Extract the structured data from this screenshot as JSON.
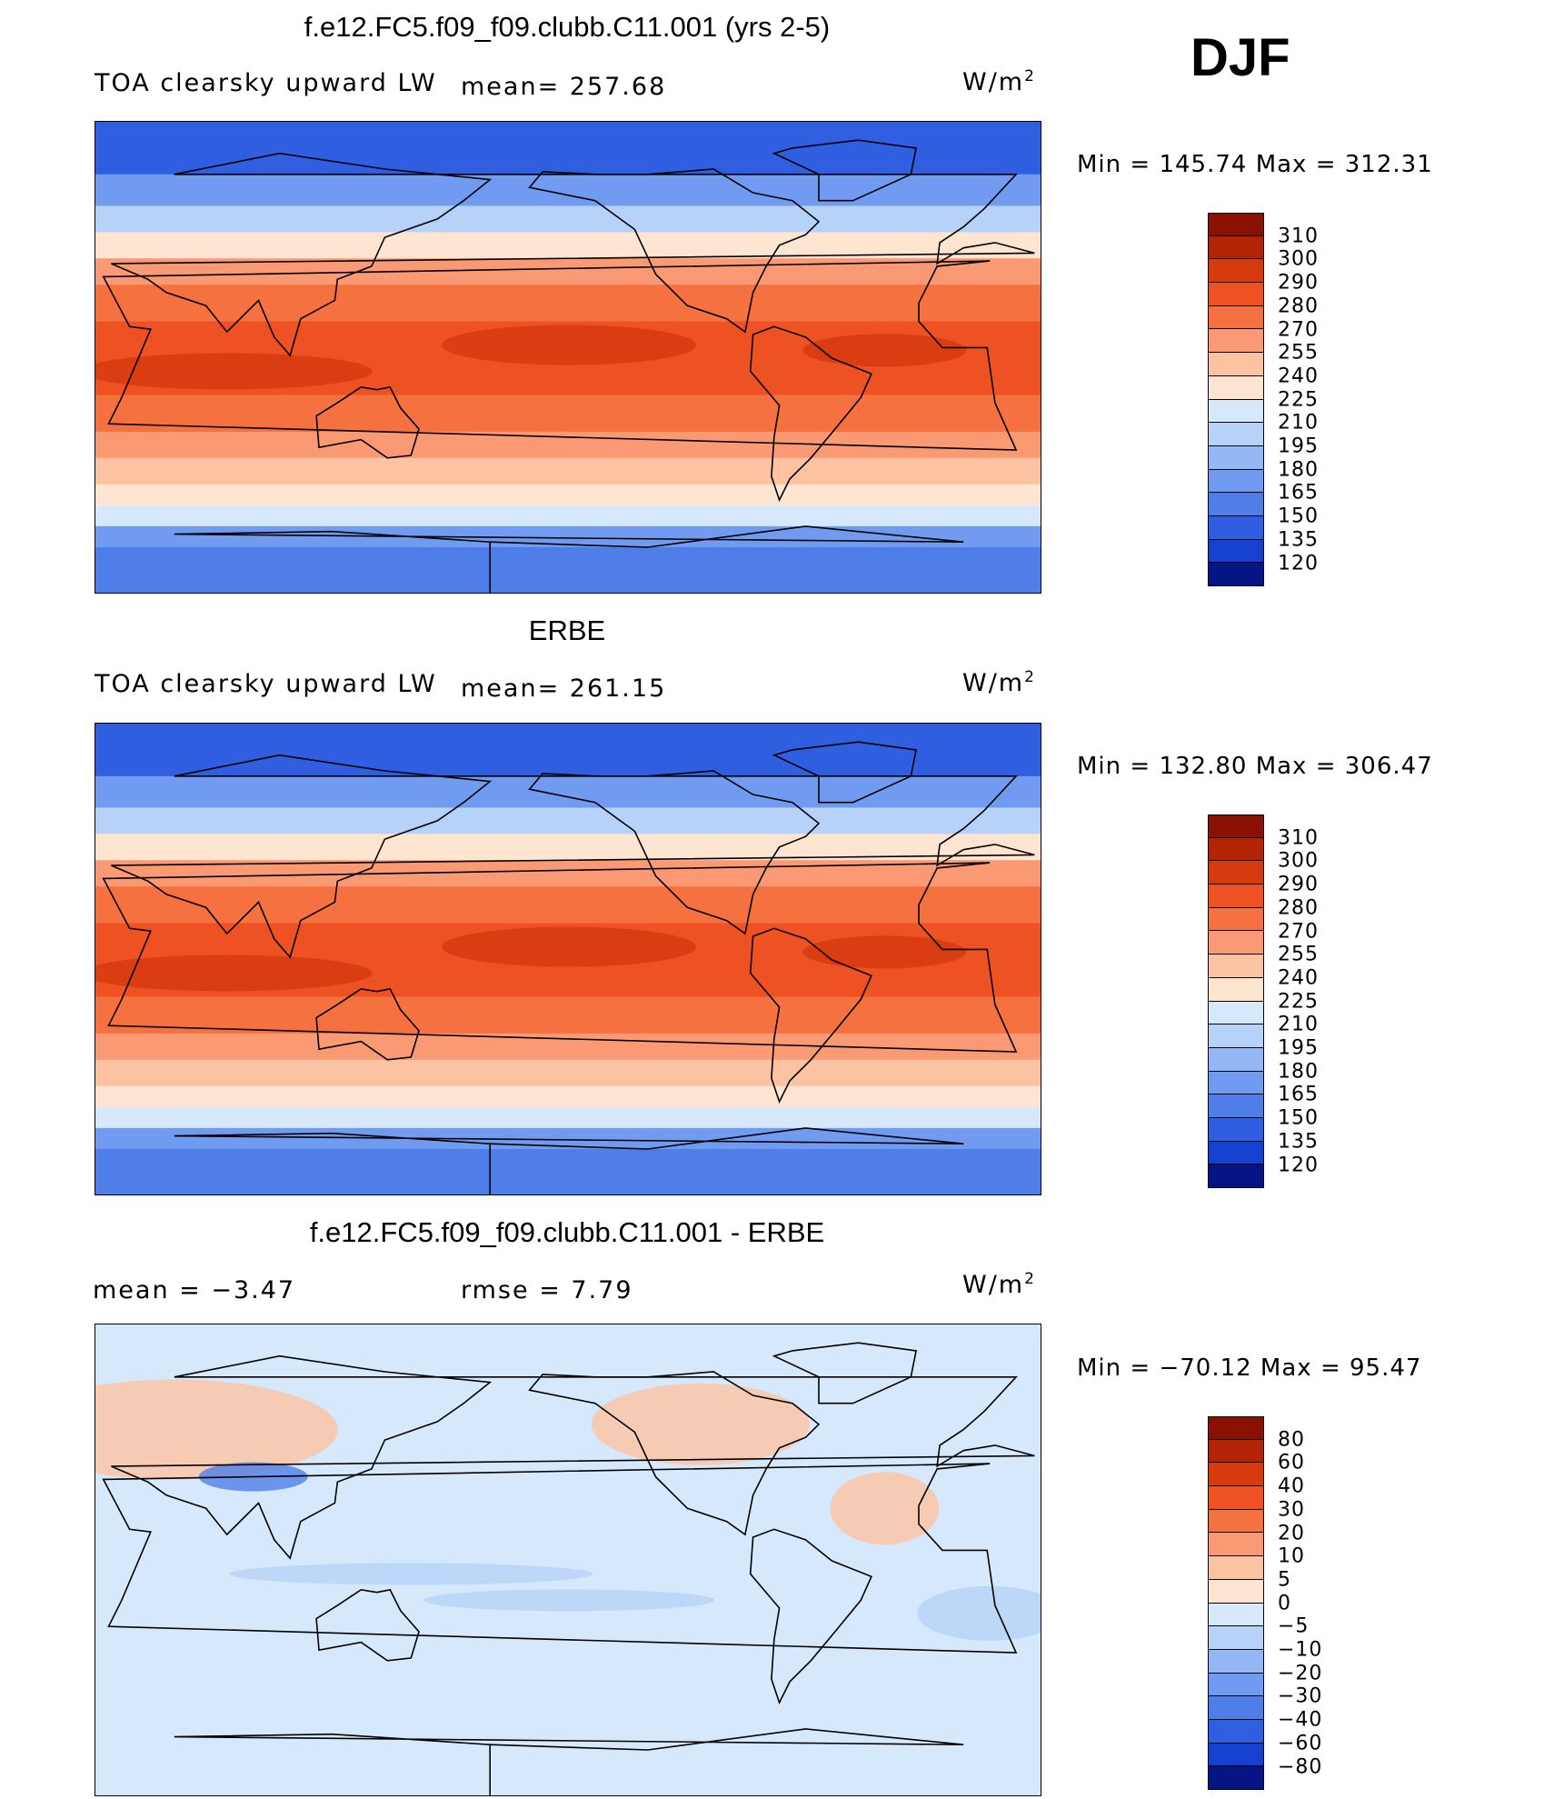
{
  "season": "DJF",
  "colors": {
    "warm": [
      "#fde5d2",
      "#fcc3a3",
      "#fa9a74",
      "#f5713f",
      "#ee5223",
      "#e43d12",
      "#c42a06",
      "#8a1002"
    ],
    "cool": [
      "#d6e8fb",
      "#b7d2f8",
      "#94b8f5",
      "#719bf0",
      "#507ee9",
      "#2f5fe0",
      "#1640d0",
      "#0b28a8",
      "#061585"
    ],
    "land": "#000000"
  },
  "chart_data": [
    {
      "type": "heatmap",
      "title": "f.e12.FC5.f09_f09.clubb.C11.001 (yrs 2-5)",
      "left_label": "TOA clearsky upward LW",
      "stat_label": "mean= 257.68",
      "units": "W/m",
      "units_sup": "2",
      "min_max": "Min  =  145.74  Max  =  312.31",
      "min": 145.74,
      "max": 312.31,
      "mean": 257.68,
      "colorbar": {
        "levels": [
          "310",
          "300",
          "290",
          "280",
          "270",
          "255",
          "240",
          "225",
          "210",
          "195",
          "180",
          "165",
          "150",
          "135",
          "120"
        ],
        "colors": [
          "#8a1002",
          "#b32404",
          "#d63a0f",
          "#ee5223",
          "#f5713f",
          "#fa9a74",
          "#fcc3a3",
          "#fde5d2",
          "#d6e8fb",
          "#b7d2f8",
          "#94b8f5",
          "#719bf0",
          "#507ee9",
          "#2f5fe0",
          "#1640d0",
          "#061585"
        ]
      }
    },
    {
      "type": "heatmap",
      "title": "ERBE",
      "left_label": "TOA clearsky upward LW",
      "stat_label": "mean= 261.15",
      "units": "W/m",
      "units_sup": "2",
      "min_max": "Min  =  132.80  Max  =  306.47",
      "min": 132.8,
      "max": 306.47,
      "mean": 261.15,
      "colorbar": {
        "levels": [
          "310",
          "300",
          "290",
          "280",
          "270",
          "255",
          "240",
          "225",
          "210",
          "195",
          "180",
          "165",
          "150",
          "135",
          "120"
        ],
        "colors": [
          "#8a1002",
          "#b32404",
          "#d63a0f",
          "#ee5223",
          "#f5713f",
          "#fa9a74",
          "#fcc3a3",
          "#fde5d2",
          "#d6e8fb",
          "#b7d2f8",
          "#94b8f5",
          "#719bf0",
          "#507ee9",
          "#2f5fe0",
          "#1640d0",
          "#061585"
        ]
      }
    },
    {
      "type": "heatmap",
      "title": "f.e12.FC5.f09_f09.clubb.C11.001 - ERBE",
      "left_label": "mean =   −3.47",
      "stat_label": "rmse =    7.79",
      "units": "W/m",
      "units_sup": "2",
      "min_max": "Min  = −70.12  Max  =   95.47",
      "min": -70.12,
      "max": 95.47,
      "mean": -3.47,
      "rmse": 7.79,
      "colorbar": {
        "levels": [
          "80",
          "60",
          "40",
          "30",
          "20",
          "10",
          "5",
          "0",
          "−5",
          "−10",
          "−20",
          "−30",
          "−40",
          "−60",
          "−80"
        ],
        "colors": [
          "#8a1002",
          "#b32404",
          "#d63a0f",
          "#ee5223",
          "#f5713f",
          "#fa9a74",
          "#fcc3a3",
          "#fde5d2",
          "#d6e8fb",
          "#b7d2f8",
          "#94b8f5",
          "#719bf0",
          "#507ee9",
          "#2f5fe0",
          "#1640d0",
          "#061585"
        ]
      }
    }
  ]
}
